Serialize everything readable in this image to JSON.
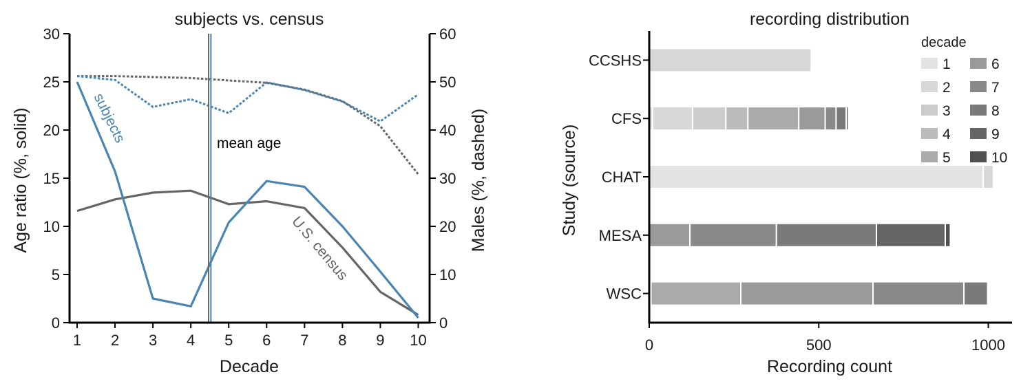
{
  "chart_data": [
    {
      "type": "line",
      "title": "subjects vs. census",
      "xlabel": "Decade",
      "ylabel": "Age ratio (%, solid)",
      "y2label": "Males (%, dashed)",
      "x": [
        1,
        2,
        3,
        4,
        5,
        6,
        7,
        8,
        9,
        10
      ],
      "x_ticks": [
        "1",
        "2",
        "3",
        "4",
        "5",
        "6",
        "7",
        "8",
        "9",
        "10"
      ],
      "xlim": [
        0.8,
        10.3
      ],
      "ylim": [
        0,
        30
      ],
      "y_ticks": [
        "0",
        "5",
        "10",
        "15",
        "20",
        "25",
        "30"
      ],
      "y2lim": [
        0,
        60
      ],
      "y2_ticks": [
        "0",
        "10",
        "20",
        "30",
        "40",
        "50",
        "60"
      ],
      "colors": {
        "subjects": "#4a84b0",
        "census": "#656565",
        "axis": "#000000"
      },
      "series": [
        {
          "name": "subjects",
          "axis": "left",
          "style": "solid",
          "values": [
            25.0,
            15.7,
            2.5,
            1.7,
            10.4,
            14.7,
            14.1,
            10.0,
            5.3,
            0.5
          ]
        },
        {
          "name": "U.S. census",
          "axis": "left",
          "style": "solid",
          "values": [
            11.6,
            12.8,
            13.5,
            13.7,
            12.3,
            12.6,
            11.9,
            7.8,
            3.2,
            0.8
          ]
        },
        {
          "name": "subjects",
          "axis": "right",
          "style": "dashed",
          "values": [
            51.2,
            50.4,
            44.8,
            46.4,
            43.5,
            49.9,
            48.3,
            45.9,
            41.8,
            47.4
          ]
        },
        {
          "name": "U.S. census",
          "axis": "right",
          "style": "dashed",
          "values": [
            51.2,
            51.2,
            51.0,
            50.8,
            50.3,
            49.8,
            48.4,
            46.0,
            40.8,
            30.8
          ]
        }
      ],
      "vlines": [
        {
          "label": "mean age",
          "x": 4.47,
          "color": "#656565"
        },
        {
          "label": "",
          "x": 4.53,
          "color": "#4a84b0"
        }
      ],
      "annotations": [
        {
          "text": "subjects",
          "series": "subjects"
        },
        {
          "text": "U.S. census",
          "series": "U.S. census"
        },
        {
          "text": "mean age",
          "series": "mean age"
        }
      ]
    },
    {
      "type": "bar",
      "orientation": "horizontal",
      "stacked": true,
      "title": "recording distribution",
      "xlabel": "Recording count",
      "ylabel": "Study (source)",
      "xlim": [
        0,
        1070
      ],
      "x_ticks": [
        "0",
        "500",
        "1000"
      ],
      "categories": [
        "CCSHS",
        "CFS",
        "CHAT",
        "MESA",
        "WSC"
      ],
      "legend": {
        "title": "decade",
        "placement": "top-right",
        "entries": [
          "1",
          "2",
          "3",
          "4",
          "5",
          "6",
          "7",
          "8",
          "9",
          "10"
        ],
        "colors": [
          "#e3e3e3",
          "#d8d8d8",
          "#cccccc",
          "#bbbbbb",
          "#aaaaaa",
          "#9a9a9a",
          "#898989",
          "#7a7a7a",
          "#656565",
          "#505050"
        ]
      },
      "series": [
        {
          "name": "1",
          "values": [
            0,
            10,
            985,
            0,
            0
          ]
        },
        {
          "name": "2",
          "values": [
            478,
            118,
            30,
            0,
            0
          ]
        },
        {
          "name": "3",
          "values": [
            0,
            98,
            0,
            0,
            0
          ]
        },
        {
          "name": "4",
          "values": [
            0,
            65,
            0,
            0,
            5
          ]
        },
        {
          "name": "5",
          "values": [
            0,
            150,
            0,
            0,
            265
          ]
        },
        {
          "name": "6",
          "values": [
            0,
            78,
            0,
            120,
            390
          ]
        },
        {
          "name": "7",
          "values": [
            0,
            32,
            0,
            255,
            268
          ]
        },
        {
          "name": "8",
          "values": [
            0,
            30,
            0,
            295,
            70
          ]
        },
        {
          "name": "9",
          "values": [
            0,
            7,
            0,
            203,
            0
          ]
        },
        {
          "name": "10",
          "values": [
            0,
            0,
            0,
            15,
            0
          ]
        }
      ]
    }
  ]
}
